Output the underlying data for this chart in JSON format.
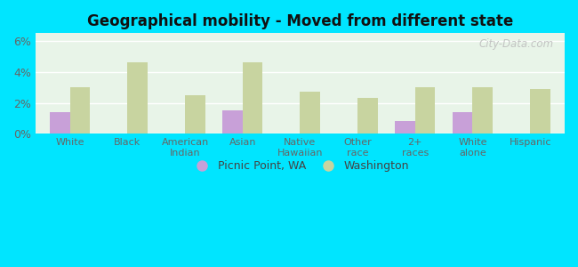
{
  "title": "Geographical mobility - Moved from different state",
  "categories": [
    "White",
    "Black",
    "American\nIndian",
    "Asian",
    "Native\nHawaiian",
    "Other\nrace",
    "2+\nraces",
    "White\nalone",
    "Hispanic"
  ],
  "picnic_point": [
    1.4,
    0,
    0,
    1.5,
    0,
    0,
    0.8,
    1.4,
    0
  ],
  "washington": [
    3.0,
    4.6,
    2.5,
    4.6,
    2.7,
    2.3,
    3.0,
    3.0,
    2.9
  ],
  "picnic_color": "#c8a0d8",
  "washington_color": "#c8d4a0",
  "background_color": "#e8f4e8",
  "outer_background": "#00e5ff",
  "ylim": [
    0,
    6.5
  ],
  "yticks": [
    0,
    2,
    4,
    6
  ],
  "yticklabels": [
    "0%",
    "2%",
    "4%",
    "6%"
  ],
  "bar_width": 0.35,
  "legend_label_picnic": "Picnic Point, WA",
  "legend_label_washington": "Washington",
  "watermark": "City-Data.com"
}
